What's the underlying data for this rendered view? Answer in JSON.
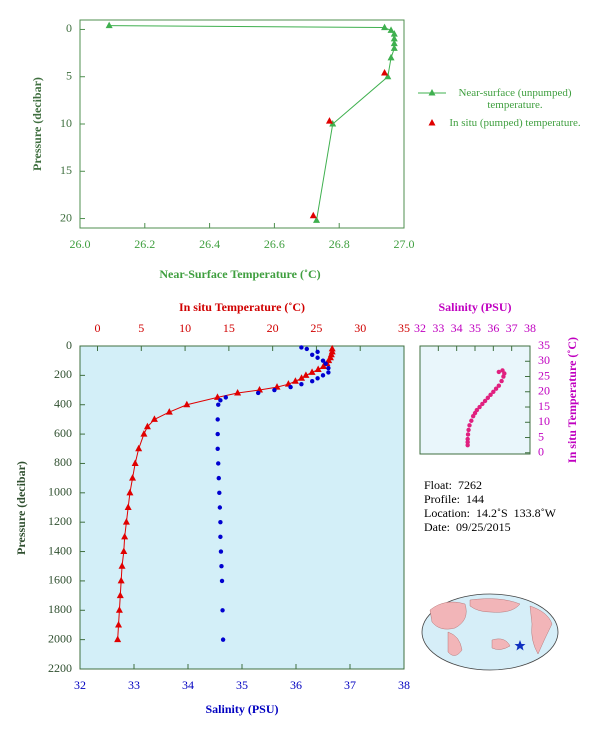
{
  "chart_data": [
    {
      "type": "line",
      "xlabel": "Near-Surface Temperature (˚C)",
      "ylabel": "Pressure (decibar)",
      "xlim": [
        26,
        27
      ],
      "xticks": [
        {
          "value": 26,
          "label": "26.0"
        },
        26.2,
        26.4,
        26.6,
        26.8,
        {
          "value": 27,
          "label": "27.0"
        }
      ],
      "ylim": [
        -1,
        21
      ],
      "yticks": [
        0,
        5,
        10,
        15,
        20
      ],
      "y_inverted": true,
      "xaxis_position": "bottom",
      "yaxis_position": "left",
      "xaxis_color": "#3f9f3f",
      "yaxis_color": "#3f6f3f",
      "frame_color": "#4f8f4f",
      "background": "#ffffff",
      "series": [
        {
          "name": "Near-surface (unpumped) temperature.",
          "color": "#3fb04f",
          "marker": "triangle",
          "line": true,
          "x": [
            26.09,
            26.94,
            26.96,
            26.97,
            26.97,
            26.97,
            26.97,
            26.96,
            26.95,
            26.78,
            26.73
          ],
          "y": [
            -0.4,
            -0.2,
            0.1,
            0.5,
            1.0,
            1.5,
            2.0,
            3.0,
            5.0,
            10.0,
            20.2
          ]
        },
        {
          "name": "In situ (pumped) temperature.",
          "color": "#e00000",
          "marker": "triangle",
          "line": false,
          "x": [
            26.94,
            26.77,
            26.72
          ],
          "y": [
            4.6,
            9.7,
            19.7
          ]
        }
      ]
    },
    {
      "type": "line",
      "xlabel": "Salinity (PSU)",
      "x2label": "In situ Temperature (˚C)",
      "ylabel": "Pressure (decibar)",
      "xlim": [
        32,
        38
      ],
      "xticks": [
        32,
        33,
        34,
        35,
        36,
        37,
        38
      ],
      "x2lim": [
        -2,
        35
      ],
      "x2ticks": [
        0,
        5,
        10,
        15,
        20,
        25,
        30,
        35
      ],
      "ylim": [
        0,
        2200
      ],
      "yticks": [
        0,
        200,
        400,
        600,
        800,
        1000,
        1200,
        1400,
        1600,
        1800,
        2000,
        2200
      ],
      "y_inverted": true,
      "xaxis_position": "bottom",
      "yaxis_position": "left",
      "xaxis_color": "#0000c0",
      "x2axis_color": "#d00000",
      "yaxis_color": "#2f4f2f",
      "frame_color": "#3f6f3f",
      "background": "#d3eff8",
      "series": [
        {
          "color": "#e00000",
          "marker": "triangle",
          "line": true,
          "axis": "x2",
          "x": [
            26.8,
            26.8,
            26.7,
            26.6,
            26.4,
            26.2,
            25.8,
            25.2,
            24.5,
            23.8,
            23.3,
            22.6,
            21.8,
            20.5,
            18.5,
            16.0,
            13.7,
            10.2,
            8.2,
            6.5,
            5.7,
            5.3,
            4.7,
            4.3,
            4.0,
            3.7,
            3.5,
            3.3,
            3.1,
            3.0,
            2.8,
            2.7,
            2.6,
            2.5,
            2.4,
            2.3
          ],
          "y": [
            20,
            40,
            60,
            80,
            100,
            120,
            140,
            160,
            180,
            200,
            220,
            240,
            260,
            280,
            300,
            320,
            350,
            400,
            450,
            500,
            550,
            600,
            700,
            800,
            900,
            1000,
            1100,
            1200,
            1300,
            1400,
            1500,
            1600,
            1700,
            1800,
            1900,
            2000
          ]
        },
        {
          "color": "#0000d0",
          "marker": "circle",
          "line": false,
          "x": [
            36.1,
            36.2,
            36.4,
            36.3,
            36.4,
            36.5,
            36.55,
            36.6,
            36.6,
            36.5,
            36.4,
            36.3,
            36.1,
            35.9,
            35.6,
            35.3,
            34.7,
            34.6,
            34.56,
            34.55,
            34.55,
            34.55,
            34.56,
            34.57,
            34.58,
            34.59,
            34.6,
            34.6,
            34.61,
            34.62,
            34.63,
            34.64,
            34.65
          ],
          "y": [
            10,
            20,
            40,
            60,
            80,
            100,
            120,
            150,
            180,
            200,
            220,
            240,
            260,
            280,
            300,
            320,
            350,
            370,
            400,
            500,
            600,
            700,
            800,
            900,
            1000,
            1100,
            1200,
            1300,
            1400,
            1500,
            1600,
            1800,
            2000
          ]
        }
      ]
    },
    {
      "type": "scatter",
      "xlabel": "Salinity (PSU)",
      "ylabel": "In situ Temperature (˚C)",
      "xlim": [
        32,
        38
      ],
      "xticks": [
        32,
        33,
        34,
        35,
        36,
        37,
        38
      ],
      "ylim": [
        -0.4,
        35
      ],
      "yticks": [
        0,
        5,
        10,
        15,
        20,
        25,
        30,
        35
      ],
      "y_inverted": false,
      "xaxis_position": "top",
      "yaxis_position": "right",
      "xaxis_color": "#c000c0",
      "yaxis_color": "#c000c0",
      "frame_color": "#3f6f3f",
      "background": "#e9f6fb",
      "series": [
        {
          "color": "#e0207f",
          "marker": "circle",
          "line": false,
          "x": [
            34.6,
            34.6,
            34.6,
            34.62,
            34.65,
            34.7,
            34.8,
            34.9,
            35.0,
            35.1,
            35.25,
            35.4,
            35.55,
            35.7,
            35.85,
            36.0,
            36.15,
            36.3,
            36.45,
            36.55,
            36.6,
            36.5,
            36.3
          ],
          "y": [
            2.5,
            3.5,
            4.5,
            6,
            7.5,
            9,
            10.5,
            12,
            13,
            14,
            15,
            16,
            17,
            18,
            19,
            20,
            21,
            22,
            23.5,
            25,
            26,
            27,
            26.5
          ]
        }
      ]
    }
  ],
  "info": [
    "Float:  7262",
    "Profile:  144",
    "Location:  14.2˚S  133.8˚W",
    "Date:  09/25/2015"
  ]
}
